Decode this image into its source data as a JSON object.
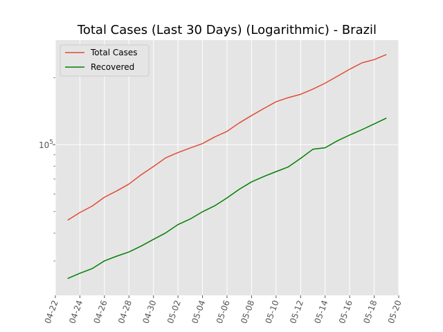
{
  "chart_data": {
    "type": "line",
    "title": "Total Cases (Last 30 Days) (Logarithmic) - Brazil",
    "xlabel": "",
    "ylabel": "",
    "yscale": "log",
    "grid": true,
    "legend": "top-left",
    "x_range": [
      "2020-04-22",
      "2020-05-20"
    ],
    "ylim": [
      21000,
      295000
    ],
    "x_ticks": [
      {
        "date": "2020-04-22",
        "label": "04-22"
      },
      {
        "date": "2020-04-24",
        "label": "04-24"
      },
      {
        "date": "2020-04-26",
        "label": "04-26"
      },
      {
        "date": "2020-04-28",
        "label": "04-28"
      },
      {
        "date": "2020-04-30",
        "label": "04-30"
      },
      {
        "date": "2020-05-02",
        "label": "05-02"
      },
      {
        "date": "2020-05-04",
        "label": "05-04"
      },
      {
        "date": "2020-05-06",
        "label": "05-06"
      },
      {
        "date": "2020-05-08",
        "label": "05-08"
      },
      {
        "date": "2020-05-10",
        "label": "05-10"
      },
      {
        "date": "2020-05-12",
        "label": "05-12"
      },
      {
        "date": "2020-05-14",
        "label": "05-14"
      },
      {
        "date": "2020-05-16",
        "label": "05-16"
      },
      {
        "date": "2020-05-18",
        "label": "05-18"
      },
      {
        "date": "2020-05-20",
        "label": "05-20"
      }
    ],
    "y_ticks": [
      {
        "value": 100000,
        "label": "10",
        "exponent": "5"
      }
    ],
    "dates": [
      "2020-04-23",
      "2020-04-24",
      "2020-04-25",
      "2020-04-26",
      "2020-04-27",
      "2020-04-28",
      "2020-04-29",
      "2020-04-30",
      "2020-05-01",
      "2020-05-02",
      "2020-05-03",
      "2020-05-04",
      "2020-05-05",
      "2020-05-06",
      "2020-05-07",
      "2020-05-08",
      "2020-05-09",
      "2020-05-10",
      "2020-05-11",
      "2020-05-12",
      "2020-05-13",
      "2020-05-14",
      "2020-05-15",
      "2020-05-16",
      "2020-05-17",
      "2020-05-18",
      "2020-05-19"
    ],
    "series": [
      {
        "name": "Total Cases",
        "color": "#e24a33",
        "values": [
          45700,
          49500,
          52900,
          58000,
          61900,
          66500,
          73200,
          79700,
          87200,
          92100,
          96600,
          101100,
          108300,
          114700,
          125200,
          135100,
          145300,
          155900,
          162700,
          168300,
          177600,
          188900,
          202900,
          218200,
          233100,
          241100,
          254200
        ]
      },
      {
        "name": "Recovered",
        "color": "#008000",
        "values": [
          25000,
          26400,
          27700,
          30000,
          31500,
          32900,
          35000,
          37500,
          40100,
          43700,
          46300,
          49900,
          53100,
          57600,
          63000,
          68000,
          71900,
          75600,
          79400,
          86700,
          95300,
          96800,
          104000,
          110400,
          116700,
          123900,
          131600
        ]
      }
    ]
  }
}
